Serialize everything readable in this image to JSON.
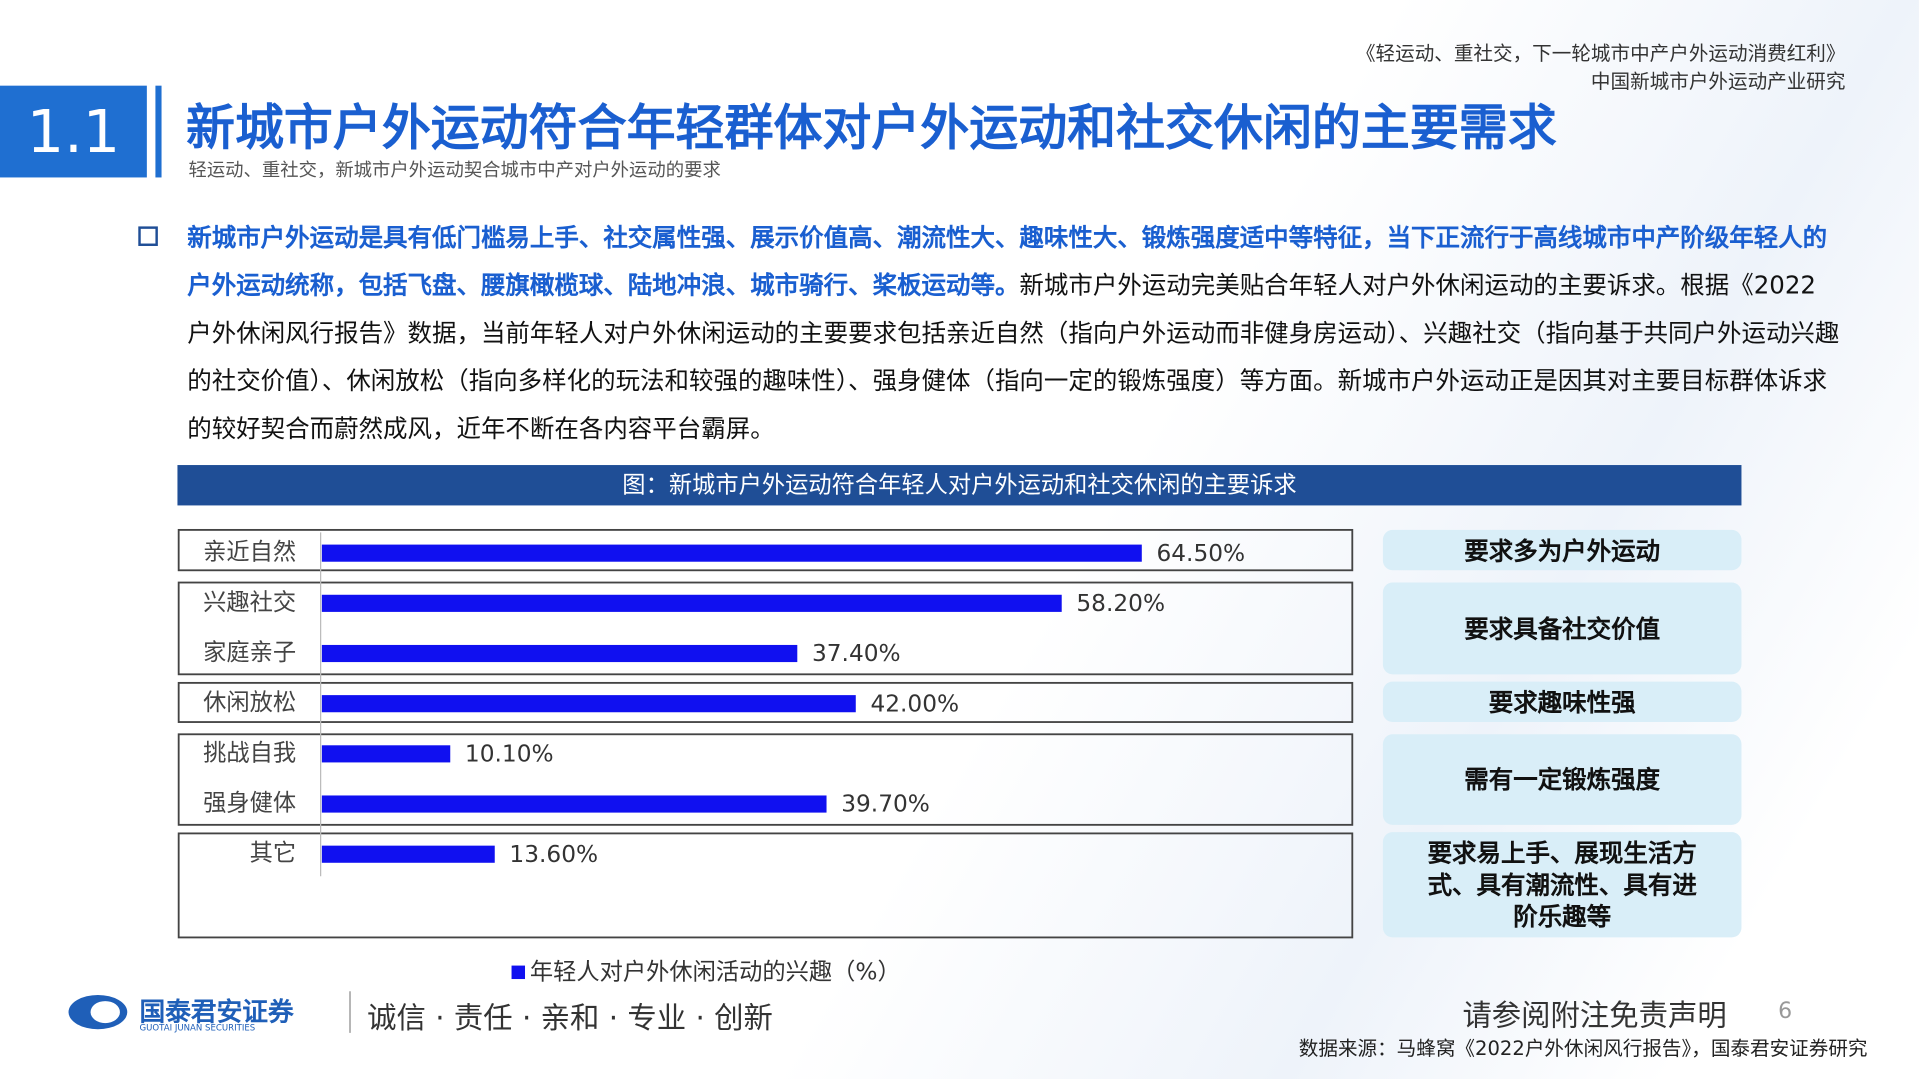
{
  "header": {
    "report_title": "《轻运动、重社交，下一轮城市中产户外运动消费红利》",
    "report_subtitle": "中国新城市户外运动产业研究",
    "section": "1.1",
    "title": "新城市户外运动符合年轻群体对户外运动和社交休闲的主要需求",
    "subtitle": "轻运动、重社交，新城市户外运动契合城市中产对户外运动的要求"
  },
  "body": {
    "highlight": "新城市户外运动是具有低门槛易上手、社交属性强、展示价值高、潮流性大、趣味性大、锻炼强度适中等特征，当下正流行于高线城市中产阶级年轻人的户外运动统称，包括飞盘、腰旗橄榄球、陆地冲浪、城市骑行、桨板运动等。",
    "text": "新城市户外运动完美贴合年轻人对户外休闲运动的主要诉求。根据《2022户外休闲风行报告》数据，当前年轻人对户外休闲运动的主要要求包括亲近自然（指向户外运动而非健身房运动）、兴趣社交（指向基于共同户外运动兴趣的社交价值）、休闲放松（指向多样化的玩法和较强的趣味性）、强身健体（指向一定的锻炼强度）等方面。新城市户外运动正是因其对主要目标群体诉求的较好契合而蔚然成风，近年不断在各内容平台霸屏。"
  },
  "chart_data": {
    "type": "bar",
    "orientation": "horizontal",
    "title": "图：新城市户外运动符合年轻人对户外运动和社交休闲的主要诉求",
    "categories": [
      "亲近自然",
      "兴趣社交",
      "家庭亲子",
      "休闲放松",
      "挑战自我",
      "强身健体",
      "其它"
    ],
    "series": [
      {
        "name": "年轻人对户外休闲活动的兴趣（%）",
        "color": "#1010f0",
        "values": [
          64.5,
          58.2,
          37.4,
          42.0,
          10.1,
          39.7,
          13.6
        ],
        "value_labels": [
          "64.50%",
          "58.20%",
          "37.40%",
          "42.00%",
          "10.10%",
          "39.70%",
          "13.60%"
        ]
      }
    ],
    "xlim": [
      0,
      80
    ],
    "annotations": [
      "要求多为户外运动",
      "要求具备社交价值",
      "要求趣味性强",
      "需有一定锻炼强度",
      "要求易上手、展现生活方式、具有潮流性、具有进阶乐趣等"
    ]
  },
  "footer": {
    "company": "国泰君安证券",
    "company_en": "GUOTAI JUNAN SECURITIES",
    "slogan": "诚信 · 责任 · 亲和 · 专业 · 创新",
    "disclaimer": "请参阅附注免责声明",
    "page": 6,
    "source": "数据来源：马蜂窝《2022户外休闲风行报告》，国泰君安证券研究"
  }
}
